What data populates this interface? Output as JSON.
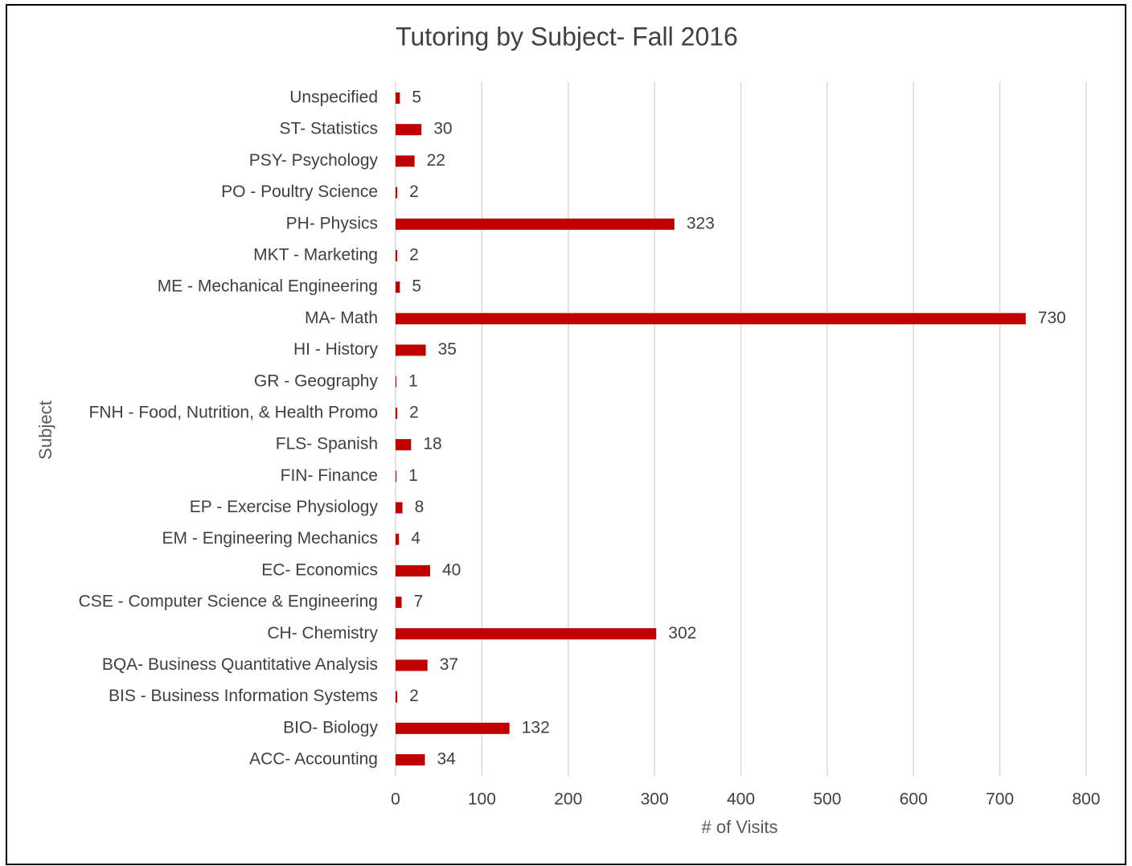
{
  "chart_data": {
    "type": "hbar",
    "title": "Tutoring by Subject- Fall 2016",
    "x_label": "# of Visits",
    "y_label": "Subject",
    "categories": [
      "Unspecified",
      "ST- Statistics",
      "PSY- Psychology",
      "PO - Poultry Science",
      "PH- Physics",
      "MKT - Marketing",
      "ME - Mechanical Engineering",
      "MA- Math",
      "HI - History",
      "GR - Geography",
      "FNH - Food, Nutrition, & Health Promo",
      "FLS- Spanish",
      "FIN- Finance",
      "EP - Exercise Physiology",
      "EM - Engineering Mechanics",
      "EC- Economics",
      "CSE - Computer Science & Engineering",
      "CH- Chemistry",
      "BQA- Business Quantitative Analysis",
      "BIS - Business Information Systems",
      "BIO- Biology",
      "ACC- Accounting"
    ],
    "values": [
      5,
      30,
      22,
      2,
      323,
      2,
      5,
      730,
      35,
      1,
      2,
      18,
      1,
      8,
      4,
      40,
      7,
      302,
      37,
      2,
      132,
      34
    ],
    "color": "#c00000",
    "xlim": [
      0,
      800
    ],
    "xticks": [
      0,
      100,
      200,
      300,
      400,
      500,
      600,
      700,
      800
    ],
    "grid": true
  }
}
